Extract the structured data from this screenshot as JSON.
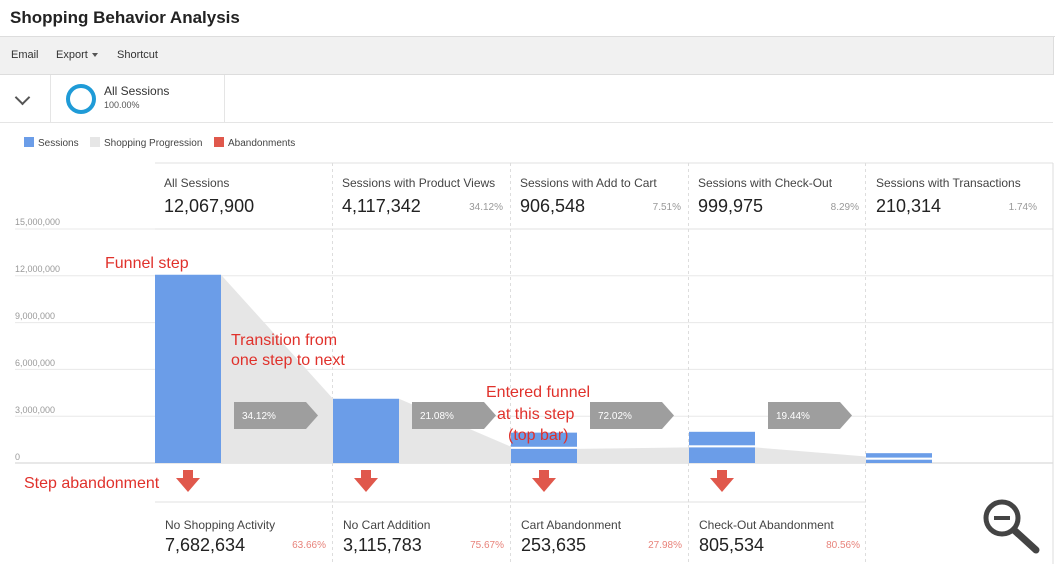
{
  "page": {
    "title": "Shopping Behavior Analysis"
  },
  "toolbar": {
    "email": "Email",
    "export": "Export",
    "shortcut": "Shortcut"
  },
  "segment": {
    "name": "All Sessions",
    "percent": "100.00%",
    "ring_color": "#1f9bd7"
  },
  "legend": [
    {
      "label": "Sessions",
      "color": "#6b9de8"
    },
    {
      "label": "Shopping Progression",
      "color": "#e6e6e6"
    },
    {
      "label": "Abandonments",
      "color": "#e0584c"
    }
  ],
  "y_axis_ticks": [
    "15,000,000",
    "12,000,000",
    "9,000,000",
    "6,000,000",
    "3,000,000",
    "0"
  ],
  "steps": [
    {
      "label": "All Sessions",
      "value": "12,067,900",
      "percent": ""
    },
    {
      "label": "Sessions with Product Views",
      "value": "4,117,342",
      "percent": "34.12%"
    },
    {
      "label": "Sessions with Add to Cart",
      "value": "906,548",
      "percent": "7.51%"
    },
    {
      "label": "Sessions with Check-Out",
      "value": "999,975",
      "percent": "8.29%"
    },
    {
      "label": "Sessions with Transactions",
      "value": "210,314",
      "percent": "1.74%"
    }
  ],
  "abandonments": [
    {
      "label": "No Shopping Activity",
      "value": "7,682,634",
      "percent": "63.66%"
    },
    {
      "label": "No Cart Addition",
      "value": "3,115,783",
      "percent": "75.67%"
    },
    {
      "label": "Cart Abandonment",
      "value": "253,635",
      "percent": "27.98%"
    },
    {
      "label": "Check-Out Abandonment",
      "value": "805,534",
      "percent": "80.56%"
    }
  ],
  "annotations": {
    "funnel_step": "Funnel step",
    "transition_line1": "Transition from",
    "transition_line2": "one step to next",
    "entered_line1": "Entered funnel",
    "entered_line2": "at this step",
    "entered_line3": "(top bar)",
    "step_abandonment": "Step abandonment"
  },
  "icons": {
    "zoom": "zoom-out-icon",
    "collapse": "chevron-down-icon"
  },
  "chart_data": {
    "type": "bar",
    "categories": [
      "All Sessions",
      "Sessions with Product Views",
      "Sessions with Add to Cart",
      "Sessions with Check-Out",
      "Sessions with Transactions"
    ],
    "series": [
      {
        "name": "Sessions",
        "values": [
          12067900,
          4117342,
          906548,
          999975,
          210314
        ],
        "color": "#6b9de8"
      },
      {
        "name": "Entered funnel at this step",
        "values": [
          0,
          0,
          1040000,
          1000000,
          420000
        ],
        "color": "#6b9de8"
      }
    ],
    "transitions": [
      {
        "from": "All Sessions",
        "to": "Sessions with Product Views",
        "label": "34.12%"
      },
      {
        "from": "Sessions with Product Views",
        "to": "Sessions with Add to Cart",
        "label": "21.08%"
      },
      {
        "from": "Sessions with Add to Cart",
        "to": "Sessions with Check-Out",
        "label": "72.02%"
      },
      {
        "from": "Sessions with Check-Out",
        "to": "Sessions with Transactions",
        "label": "19.44%"
      }
    ],
    "ylim": [
      0,
      15000000
    ],
    "grid": true,
    "legend_position": "top-left"
  }
}
